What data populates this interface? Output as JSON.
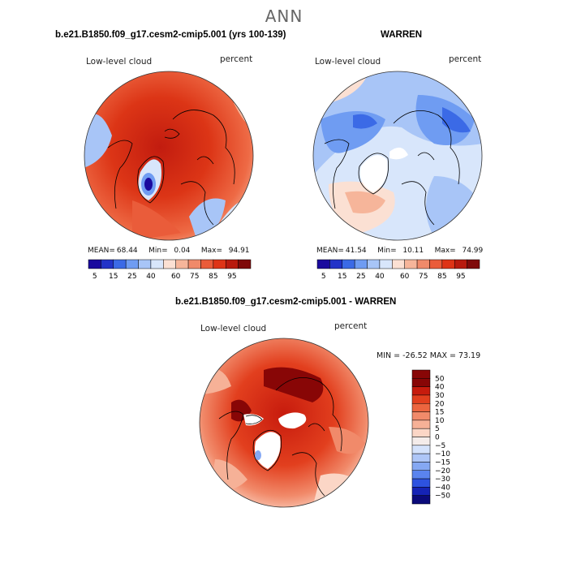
{
  "title": "ANN",
  "colors": {
    "abs_scale": [
      "#1a0a9e",
      "#2233c8",
      "#3b6ae6",
      "#6f9cf2",
      "#a8c5f7",
      "#d8e6fb",
      "#fbe0d3",
      "#f6b59a",
      "#f08a6a",
      "#ea5c3a",
      "#de3416",
      "#b81a0e",
      "#7f0a0a"
    ],
    "diff_scale": [
      "#0b0a7a",
      "#1523b5",
      "#2d52e0",
      "#5a84ee",
      "#85a8f3",
      "#aec6f7",
      "#d4e2fb",
      "#f4ecea",
      "#fbd6c6",
      "#f6b197",
      "#f18a6a",
      "#ec653f",
      "#e23f1e",
      "#c71b0d",
      "#880606"
    ]
  },
  "panels": [
    {
      "title": "b.e21.B1850.f09_g17.cesm2-cmip5.001 (yrs 100-139)",
      "variable": "Low-level cloud",
      "units": "percent",
      "stats": {
        "mean_label": "MEAN=",
        "mean": "68.44",
        "min_label": "Min=",
        "min": "0.04",
        "max_label": "Max=",
        "max": "94.91"
      },
      "colorbar_ticks": [
        "5",
        "15",
        "25",
        "40",
        "60",
        "75",
        "85",
        "95"
      ]
    },
    {
      "title": "WARREN",
      "variable": "Low-level cloud",
      "units": "percent",
      "stats": {
        "mean_label": "MEAN=",
        "mean": "41.54",
        "min_label": "Min=",
        "min": "10.11",
        "max_label": "Max=",
        "max": "74.99"
      },
      "colorbar_ticks": [
        "5",
        "15",
        "25",
        "40",
        "60",
        "75",
        "85",
        "95"
      ]
    },
    {
      "title": "b.e21.B1850.f09_g17.cesm2-cmip5.001 - WARREN",
      "variable": "Low-level cloud",
      "units": "percent",
      "minmax": "MIN = -26.52  MAX =  73.19",
      "colorbar_ticks": [
        "50",
        "40",
        "30",
        "20",
        "15",
        "10",
        "5",
        "0",
        "−5",
        "−10",
        "−15",
        "−20",
        "−30",
        "−40",
        "−50"
      ]
    }
  ]
}
